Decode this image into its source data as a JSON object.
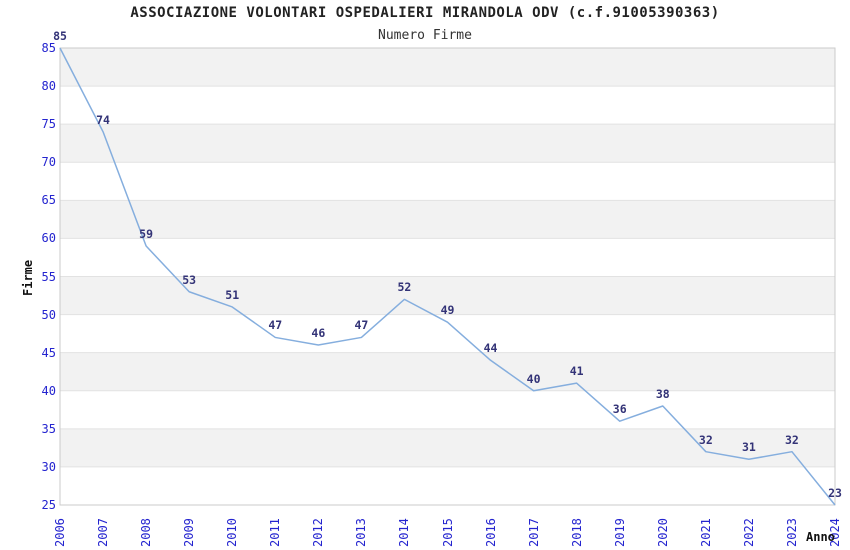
{
  "header": {
    "title": "ASSOCIAZIONE VOLONTARI OSPEDALIERI MIRANDOLA ODV (c.f.91005390363)",
    "subtitle": "Numero Firme"
  },
  "chart_data": {
    "type": "line",
    "title": "ASSOCIAZIONE VOLONTARI OSPEDALIERI MIRANDOLA ODV (c.f.91005390363)",
    "subtitle": "Numero Firme",
    "xlabel": "Anno",
    "ylabel": "Firme",
    "x": [
      2006,
      2007,
      2008,
      2009,
      2010,
      2011,
      2012,
      2013,
      2014,
      2015,
      2016,
      2017,
      2018,
      2019,
      2020,
      2021,
      2022,
      2023,
      2024
    ],
    "values": [
      85,
      74,
      59,
      53,
      51,
      47,
      46,
      47,
      52,
      49,
      44,
      40,
      41,
      36,
      38,
      32,
      31,
      32,
      23
    ],
    "ylim": [
      25,
      85
    ],
    "ytick_step": 5,
    "grid": "horizontal-bands-alternating",
    "legend": "none",
    "data_labels_shown": true,
    "colors": {
      "line": "#85aede",
      "tick_labels": "#2424cf",
      "data_labels": "#333377",
      "band": "#f2f2f2",
      "gridline": "#e2e2e2",
      "plot_border": "#cbcbcb",
      "title_text": "#222222"
    }
  }
}
